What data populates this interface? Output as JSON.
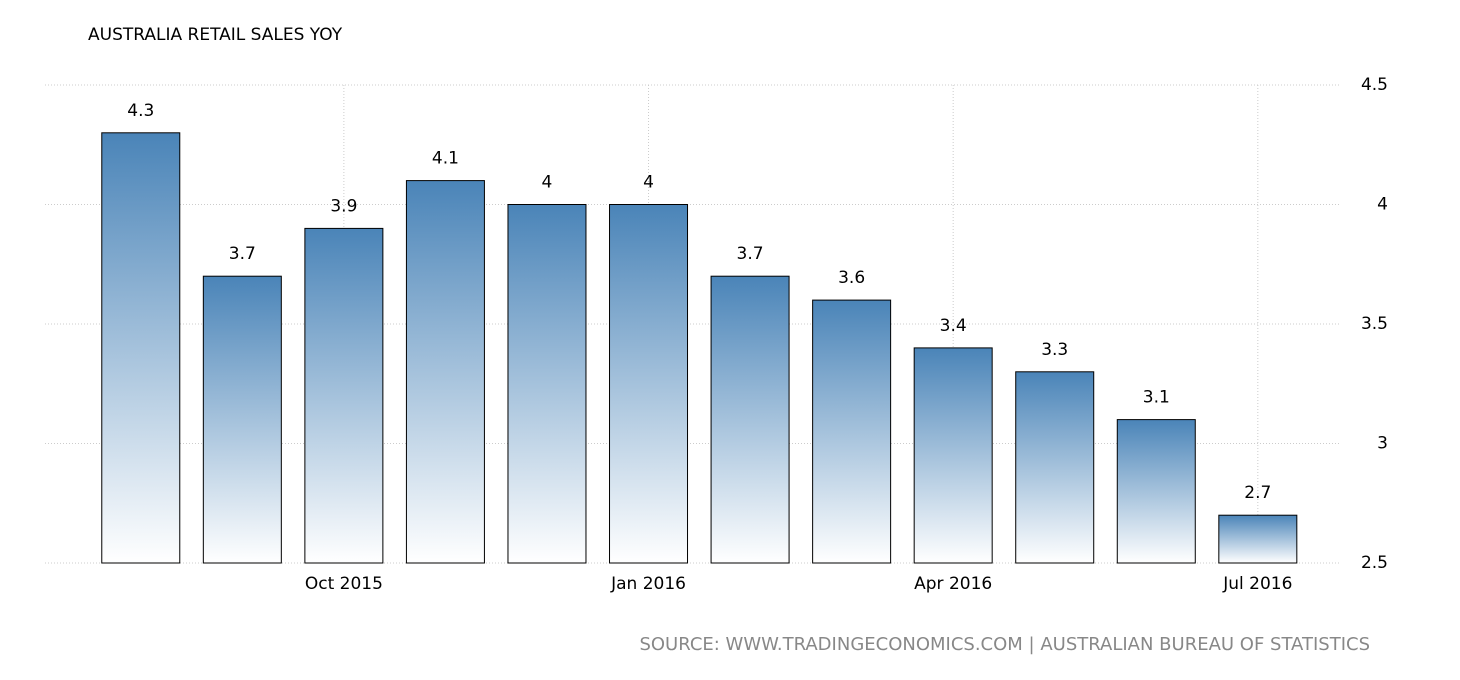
{
  "chart_data": {
    "type": "bar",
    "title": "AUSTRALIA RETAIL SALES YOY",
    "categories": [
      null,
      null,
      "Oct 2015",
      null,
      null,
      "Jan 2016",
      null,
      null,
      "Apr 2016",
      null,
      null,
      "Jul 2016"
    ],
    "values": [
      4.3,
      3.7,
      3.9,
      4.1,
      4,
      4,
      3.7,
      3.6,
      3.4,
      3.3,
      3.1,
      2.7
    ],
    "color": "#4a84b8",
    "ylim": [
      2.5,
      4.5
    ],
    "yticks": [
      2.5,
      3,
      3.5,
      4,
      4.5
    ],
    "grid": true,
    "source": "SOURCE: WWW.TRADINGECONOMICS.COM | AUSTRALIAN BUREAU OF STATISTICS"
  }
}
